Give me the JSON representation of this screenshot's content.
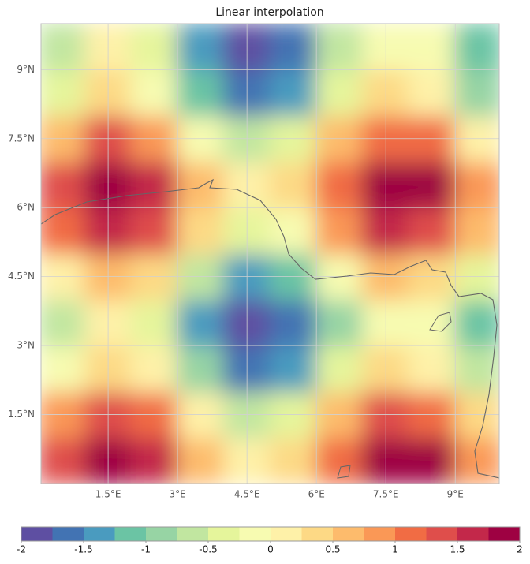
{
  "map": {
    "title": "Linear interpolation",
    "xlim": [
      0.05,
      9.95
    ],
    "ylim": [
      0,
      10
    ],
    "xticks": [
      {
        "value": 1.5,
        "label": "1.5°E"
      },
      {
        "value": 3,
        "label": "3°E"
      },
      {
        "value": 4.5,
        "label": "4.5°E"
      },
      {
        "value": 6,
        "label": "6°E"
      },
      {
        "value": 7.5,
        "label": "7.5°E"
      },
      {
        "value": 9,
        "label": "9°E"
      }
    ],
    "yticks": [
      {
        "value": 1.5,
        "label": "1.5°N"
      },
      {
        "value": 3,
        "label": "3°N"
      },
      {
        "value": 4.5,
        "label": "4.5°N"
      },
      {
        "value": 6,
        "label": "6°N"
      },
      {
        "value": 7.5,
        "label": "7.5°N"
      },
      {
        "value": 9,
        "label": "9°N"
      }
    ],
    "grid": true,
    "field": {
      "lon": [
        0.5,
        1.5,
        2.5,
        3.5,
        4.5,
        5.5,
        6.5,
        7.5,
        8.5,
        9.5
      ],
      "lat": [
        0.5,
        1.5,
        2.5,
        3.5,
        4.5,
        5.5,
        6.5,
        7.5,
        8.5,
        9.5
      ],
      "values": [
        [
          1.39,
          1.98,
          1.63,
          0.68,
          0.02,
          0.28,
          1.2,
          1.93,
          1.78,
          0.88
        ],
        [
          0.79,
          1.38,
          1.03,
          0.08,
          -0.58,
          -0.32,
          0.6,
          1.33,
          1.18,
          0.28
        ],
        [
          -0.21,
          0.38,
          0.03,
          -0.92,
          -1.58,
          -1.32,
          -0.4,
          0.33,
          0.17,
          -0.73
        ],
        [
          -0.58,
          0,
          -0.34,
          -1.3,
          -1.96,
          -1.7,
          -0.78,
          -0.04,
          -0.2,
          -1.1
        ],
        [
          0.07,
          0.65,
          0.31,
          -0.65,
          -1.31,
          -1.05,
          -0.13,
          0.61,
          0.45,
          -0.45
        ],
        [
          1.06,
          1.65,
          1.3,
          0.35,
          -0.31,
          -0.05,
          0.87,
          1.6,
          1.44,
          0.55
        ],
        [
          1.38,
          1.97,
          1.62,
          0.67,
          0.01,
          0.27,
          1.19,
          1.92,
          1.76,
          0.87
        ],
        [
          0.69,
          1.28,
          0.93,
          -0.02,
          -0.68,
          -0.42,
          0.5,
          1.23,
          1.07,
          0.18
        ],
        [
          -0.29,
          0.29,
          -0.05,
          -1.01,
          -1.67,
          -1.41,
          -0.49,
          0.25,
          0.09,
          -0.81
        ],
        [
          -0.56,
          0.03,
          -0.32,
          -1.27,
          -1.93,
          -1.67,
          -0.75,
          -0.02,
          -0.18,
          -1.08
        ]
      ]
    },
    "colorbar": {
      "clim": [
        -2,
        2
      ],
      "colors": [
        "#5e4fa2",
        "#4273b3",
        "#4a9bbf",
        "#6bc4a4",
        "#97d4a4",
        "#c1e6a0",
        "#e5f59b",
        "#f7fbb1",
        "#fef1a8",
        "#fdd985",
        "#fdbb6c",
        "#fa9856",
        "#f16c44",
        "#df4e4b",
        "#c3284a",
        "#9e0142"
      ],
      "ticks": [
        -2,
        -1.5,
        -1,
        -0.5,
        0,
        0.5,
        1,
        1.5,
        2
      ]
    }
  }
}
